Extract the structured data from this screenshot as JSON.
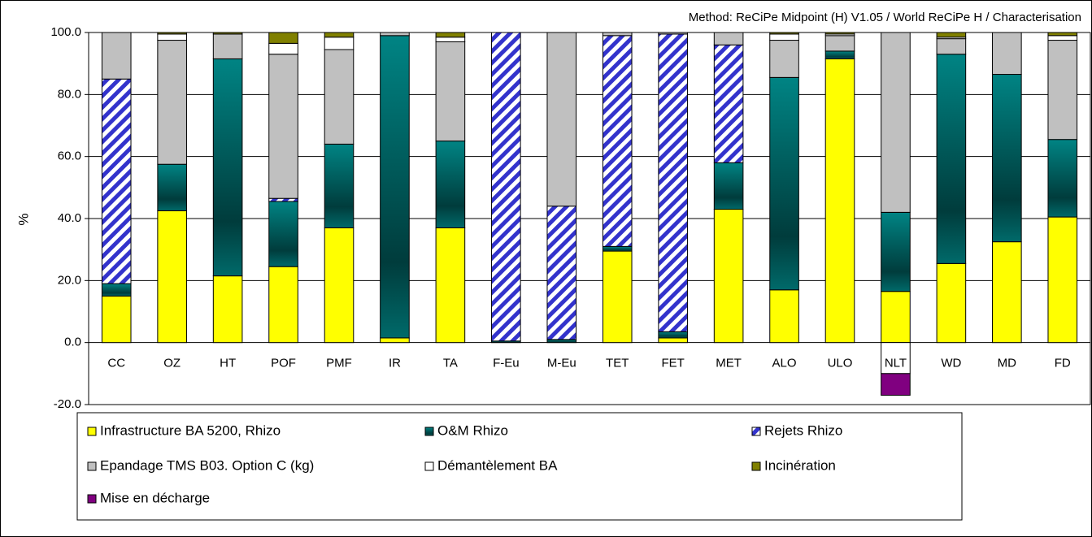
{
  "chart_data": {
    "type": "stacked_bar",
    "subtitle": "Method: ReCiPe Midpoint (H) V1.05 /  World ReCiPe H / Characterisation",
    "y_label": "%",
    "categories": [
      "CC",
      "OZ",
      "HT",
      "POF",
      "PMF",
      "IR",
      "TA",
      "F-Eu",
      "M-Eu",
      "TET",
      "FET",
      "MET",
      "ALO",
      "ULO",
      "NLT",
      "WD",
      "MD",
      "FD"
    ],
    "ylim": [
      -20,
      100
    ],
    "yticks": [
      {
        "value": -20,
        "label": "-20.0"
      },
      {
        "value": 0,
        "label": "0.0"
      },
      {
        "value": 20,
        "label": "20.0"
      },
      {
        "value": 40,
        "label": "40.0"
      },
      {
        "value": 60,
        "label": "60.0"
      },
      {
        "value": 80,
        "label": "80.0"
      },
      {
        "value": 100,
        "label": "100.0"
      }
    ],
    "grid": true,
    "legend": "bottom",
    "series": [
      {
        "name": "Infrastructure BA 5200, Rhizo",
        "color": "#ffff00",
        "values": [
          15,
          42.5,
          21.5,
          24.5,
          37,
          1.5,
          37,
          0,
          0,
          29.5,
          1.5,
          43,
          17,
          91.5,
          16.5,
          25.5,
          32.5,
          40.5
        ]
      },
      {
        "name": "O&M Rhizo",
        "color": "#008080",
        "fill_style": "gradient",
        "values": [
          4,
          15,
          70,
          21,
          27,
          97.5,
          28,
          0.5,
          1,
          1.5,
          2,
          15,
          68.5,
          2.5,
          25.5,
          67.5,
          54,
          25
        ]
      },
      {
        "name": "Rejets Rhizo",
        "color": "#3333cc",
        "fill_style": "hatch",
        "values": [
          66,
          0,
          0,
          1,
          0,
          0,
          0,
          99.5,
          43,
          68,
          96,
          38,
          0,
          0,
          0,
          0,
          0,
          0
        ]
      },
      {
        "name": "Epandage TMS B03. Option C (kg)",
        "color": "#c0c0c0",
        "values": [
          15,
          40,
          8,
          46.5,
          30.5,
          1,
          32,
          0,
          56,
          1,
          0.5,
          4,
          12,
          5,
          58,
          5,
          13.5,
          32
        ]
      },
      {
        "name": "Démantèlement BA",
        "color": "#ffffff",
        "values": [
          0,
          2,
          0,
          3.5,
          4,
          0,
          1.5,
          0,
          0,
          0,
          0,
          0,
          2,
          0.5,
          -10,
          0.5,
          0,
          1.5
        ]
      },
      {
        "name": "Incinération",
        "color": "#808000",
        "values": [
          0,
          0.5,
          0.5,
          3.5,
          1.5,
          0,
          1.5,
          0,
          0,
          0,
          0,
          0,
          0.5,
          0.5,
          0,
          1.5,
          0,
          1
        ]
      },
      {
        "name": "Mise en décharge",
        "color": "#800080",
        "values": [
          0,
          0,
          0,
          0,
          0,
          0,
          0,
          0,
          0,
          0,
          0,
          0,
          0,
          0,
          -7,
          0,
          0,
          0
        ]
      }
    ]
  }
}
